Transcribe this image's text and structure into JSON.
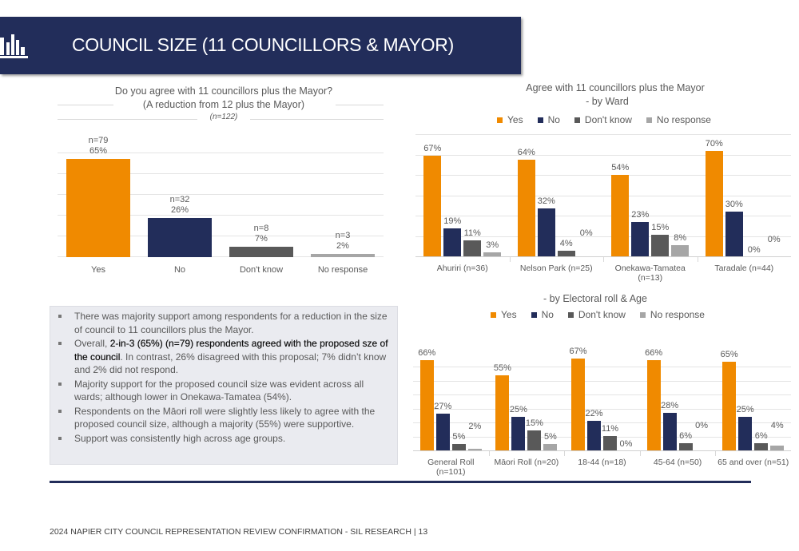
{
  "header": {
    "title": "COUNCIL SIZE (11 COUNCILLORS & MAYOR)",
    "icon": "bar-chart-icon"
  },
  "colors": {
    "yes": "#f08a00",
    "no": "#222d5a",
    "dont_know": "#595959",
    "no_response": "#a6a6a6",
    "header_bg": "#222d5a"
  },
  "notes": {
    "b1": "There was majority support among respondents for a reduction in the size of council to 11 councillors plus the Mayor.",
    "b2_pre": "Overall, ",
    "b2_bold": "2-in-3 (65%) (n=79) respondents agreed with the proposed sze of the council",
    "b2_post": ". In contrast, 26% disagreed with this proposal; 7% didn’t know and 2% did not respond.",
    "b3": "Majority support for the proposed council size was evident across all wards; although lower in Onekawa-Tamatea (54%).",
    "b4": "Respondents on the Māori roll were slightly less likely to agree with the proposed council size, although a majority (55%) were supportive.",
    "b5": "Support was consistently high across age groups."
  },
  "footer": "2024 NAPIER CITY COUNCIL REPRESENTATION REVIEW CONFIRMATION - SIL RESEARCH | 13",
  "chart_data": [
    {
      "type": "bar",
      "title": "Do you agree with 11 councillors plus the Mayor?",
      "subtitle": "(A reduction from 12 plus the Mayor)",
      "note": "(n=122)",
      "categories": [
        "Yes",
        "No",
        "Don't know",
        "No response"
      ],
      "values": [
        65,
        26,
        7,
        2
      ],
      "n_labels": [
        "n=79",
        "n=32",
        "n=8",
        "n=3"
      ],
      "labels": [
        "65%",
        "26%",
        "7%",
        "2%"
      ]
    },
    {
      "type": "bar",
      "title": "Agree with 11 councillors plus the Mayor",
      "subtitle": "- by Ward",
      "legend": [
        "Yes",
        "No",
        "Don't know",
        "No response"
      ],
      "categories": [
        "Ahuriri (n=36)",
        "Nelson Park (n=25)",
        "Onekawa-Tamatea (n=13)",
        "Taradale (n=44)"
      ],
      "series": [
        {
          "name": "Yes",
          "values": [
            67,
            64,
            54,
            70
          ],
          "labels": [
            "67%",
            "64%",
            "54%",
            "70%"
          ]
        },
        {
          "name": "No",
          "values": [
            19,
            32,
            23,
            30
          ],
          "labels": [
            "19%",
            "32%",
            "23%",
            "30%"
          ]
        },
        {
          "name": "Don't know",
          "values": [
            11,
            4,
            15,
            0
          ],
          "labels": [
            "11%",
            "4%",
            "15%",
            "0%"
          ]
        },
        {
          "name": "No response",
          "values": [
            3,
            0,
            8,
            0
          ],
          "labels": [
            "3%",
            "0%",
            "8%",
            "0%"
          ]
        }
      ]
    },
    {
      "type": "bar",
      "title": "- by Electoral roll &  Age",
      "legend": [
        "Yes",
        "No",
        "Don't know",
        "No response"
      ],
      "categories": [
        "General Roll (n=101)",
        "Māori Roll (n=20)",
        "18-44 (n=18)",
        "45-64 (n=50)",
        "65 and over (n=51)"
      ],
      "series": [
        {
          "name": "Yes",
          "values": [
            66,
            55,
            67,
            66,
            65
          ],
          "labels": [
            "66%",
            "55%",
            "67%",
            "66%",
            "65%"
          ]
        },
        {
          "name": "No",
          "values": [
            27,
            25,
            22,
            28,
            25
          ],
          "labels": [
            "27%",
            "25%",
            "22%",
            "28%",
            "25%"
          ]
        },
        {
          "name": "Don't know",
          "values": [
            5,
            15,
            11,
            6,
            6
          ],
          "labels": [
            "5%",
            "15%",
            "11%",
            "6%",
            "6%"
          ]
        },
        {
          "name": "No response",
          "values": [
            2,
            5,
            0,
            0,
            4
          ],
          "labels": [
            "2%",
            "5%",
            "0%",
            "0%",
            "4%"
          ]
        }
      ]
    }
  ]
}
